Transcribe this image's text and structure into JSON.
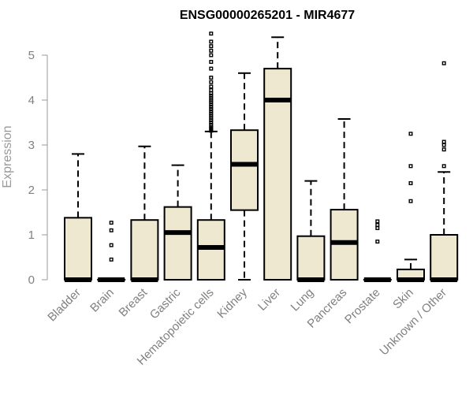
{
  "chart_data": {
    "type": "boxplot",
    "title": "ENSG00000265201 - MIR4677",
    "xlabel": "",
    "ylabel": "Expression",
    "ylim": [
      0,
      5.5
    ],
    "yticks": [
      0,
      1,
      2,
      3,
      4,
      5
    ],
    "ytick_labels": [
      "0",
      "1",
      "2",
      "3",
      "4",
      "5"
    ],
    "grid": false,
    "legend": "none",
    "box_fill": "#EEE8D0",
    "categories": [
      "Bladder",
      "Brain",
      "Breast",
      "Gastric",
      "Hematopoietic cells",
      "Kidney",
      "Liver",
      "Lung",
      "Pancreas",
      "Prostate",
      "Skin",
      "Unknown / Other"
    ],
    "boxes": [
      {
        "category": "Bladder",
        "whisker_low": 0,
        "q1": 0,
        "median": 0,
        "q3": 1.38,
        "whisker_high": 2.8,
        "outliers": []
      },
      {
        "category": "Brain",
        "whisker_low": 0,
        "q1": 0,
        "median": 0,
        "q3": 0,
        "whisker_high": 0,
        "outliers": [
          0.45,
          0.77,
          1.1,
          1.27
        ]
      },
      {
        "category": "Breast",
        "whisker_low": 0,
        "q1": 0,
        "median": 0,
        "q3": 1.33,
        "whisker_high": 2.97,
        "outliers": []
      },
      {
        "category": "Gastric",
        "whisker_low": 0,
        "q1": 0,
        "median": 1.05,
        "q3": 1.62,
        "whisker_high": 2.55,
        "outliers": []
      },
      {
        "category": "Hematopoietic cells",
        "whisker_low": 0,
        "q1": 0,
        "median": 0.72,
        "q3": 1.33,
        "whisker_high": 3.3,
        "outliers": [
          3.32,
          3.36,
          3.4,
          3.45,
          3.5,
          3.55,
          3.6,
          3.65,
          3.7,
          3.75,
          3.8,
          3.85,
          3.9,
          3.95,
          4.0,
          4.05,
          4.1,
          4.15,
          4.22,
          4.3,
          4.4,
          4.5,
          4.7,
          4.85,
          5.0,
          5.1,
          5.2,
          5.3,
          5.48
        ]
      },
      {
        "category": "Kidney",
        "whisker_low": 0,
        "q1": 1.55,
        "median": 2.57,
        "q3": 3.33,
        "whisker_high": 4.6,
        "outliers": []
      },
      {
        "category": "Liver",
        "whisker_low": 0,
        "q1": 0,
        "median": 4.0,
        "q3": 4.7,
        "whisker_high": 5.4,
        "outliers": []
      },
      {
        "category": "Lung",
        "whisker_low": 0,
        "q1": 0,
        "median": 0,
        "q3": 0.97,
        "whisker_high": 2.2,
        "outliers": []
      },
      {
        "category": "Pancreas",
        "whisker_low": 0,
        "q1": 0,
        "median": 0.83,
        "q3": 1.56,
        "whisker_high": 3.58,
        "outliers": []
      },
      {
        "category": "Prostate",
        "whisker_low": 0,
        "q1": 0,
        "median": 0,
        "q3": 0,
        "whisker_high": 0,
        "outliers": [
          0.85,
          1.15,
          1.22,
          1.3
        ]
      },
      {
        "category": "Skin",
        "whisker_low": 0,
        "q1": 0,
        "median": 0,
        "q3": 0.23,
        "whisker_high": 0.45,
        "outliers": [
          1.75,
          2.15,
          2.53,
          3.25
        ]
      },
      {
        "category": "Unknown / Other",
        "whisker_low": 0,
        "q1": 0,
        "median": 0,
        "q3": 1.0,
        "whisker_high": 2.4,
        "outliers": [
          2.53,
          2.9,
          3.0,
          3.07,
          4.82
        ]
      }
    ]
  }
}
